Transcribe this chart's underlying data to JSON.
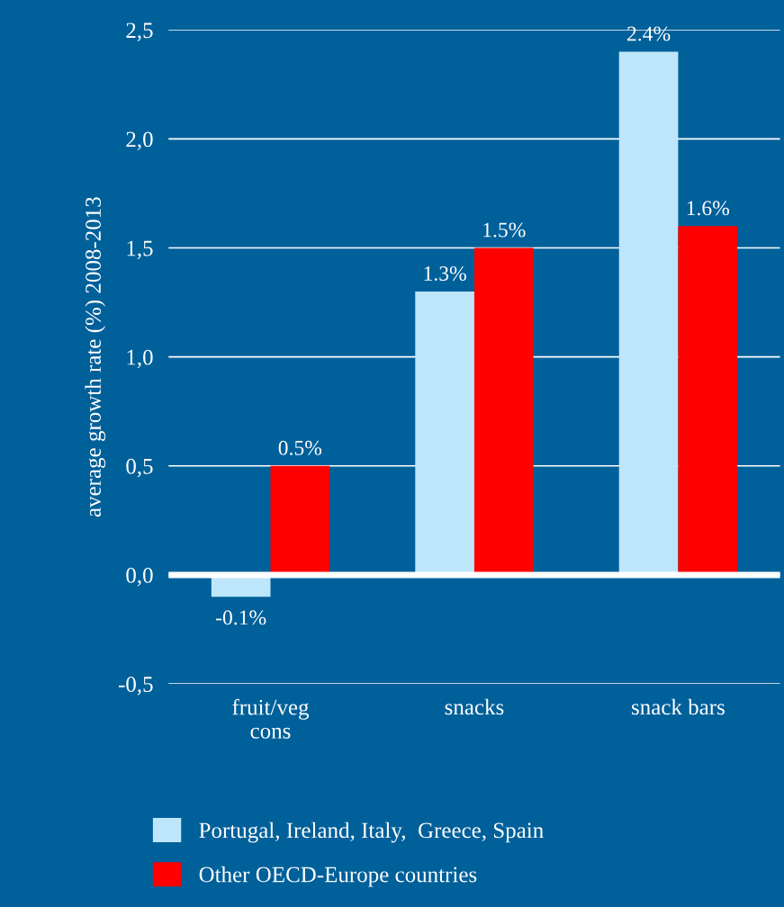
{
  "chart_data": {
    "type": "bar",
    "ylabel": "average growth rate (%) 2008-2013",
    "categories": [
      "fruit/veg\ncons",
      "snacks",
      "snack bars"
    ],
    "series": [
      {
        "name": "Portugal, Ireland, Italy,  Greece, Spain",
        "color": "#bde6fb",
        "values": [
          -0.1,
          1.3,
          2.4
        ],
        "value_labels": [
          "-0.1%",
          "1.3%",
          "2.4%"
        ]
      },
      {
        "name": "Other OECD-Europe countries",
        "color": "#ff0000",
        "values": [
          0.5,
          1.5,
          1.6
        ],
        "value_labels": [
          "0.5%",
          "1.5%",
          "1.6%"
        ]
      }
    ],
    "ylim": [
      -0.5,
      2.5
    ],
    "yticks": [
      {
        "value": -0.5,
        "label": "-0,5"
      },
      {
        "value": 0,
        "label": "0,0"
      },
      {
        "value": 0.5,
        "label": "0,5"
      },
      {
        "value": 1,
        "label": "1,0"
      },
      {
        "value": 1.5,
        "label": "1,5"
      },
      {
        "value": 2,
        "label": "2,0"
      },
      {
        "value": 2.5,
        "label": "2,5"
      }
    ],
    "ref_lines": [
      {
        "axis": "y",
        "value": 0,
        "color": "#ffffff"
      }
    ],
    "grid": "y",
    "legend": "bottom"
  }
}
